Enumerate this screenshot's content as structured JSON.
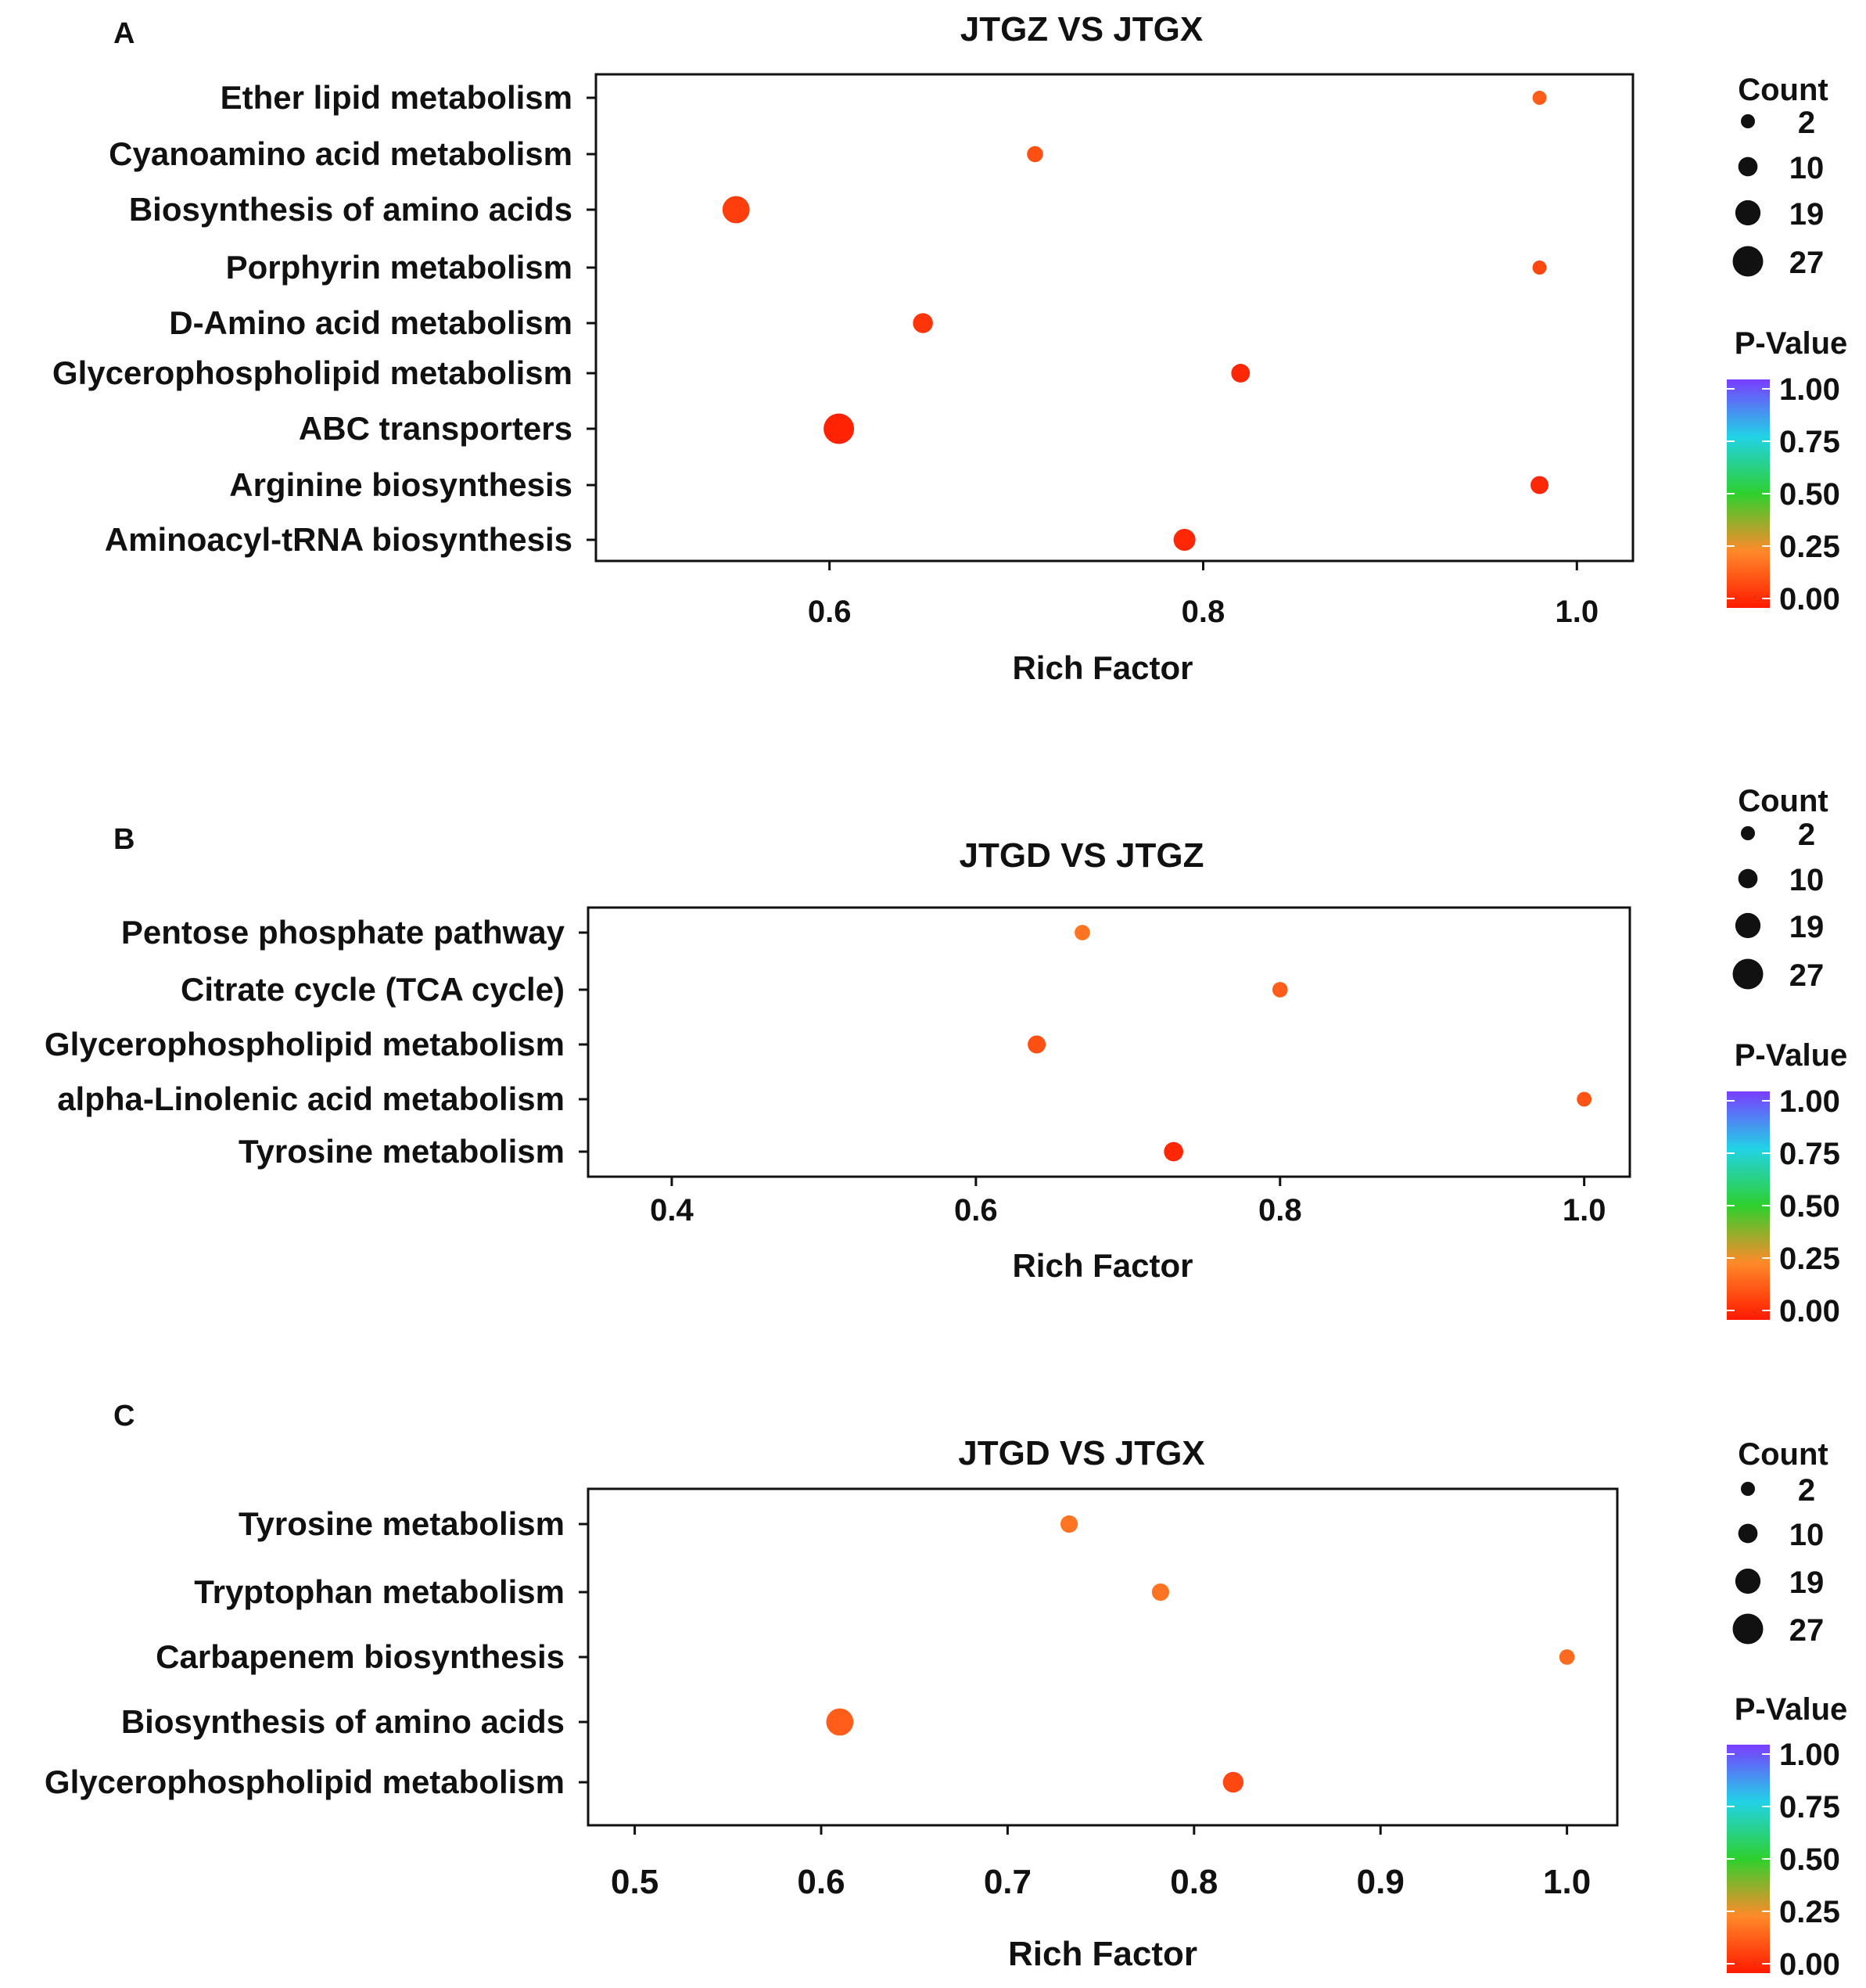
{
  "chart_data": [
    {
      "panel_label": "A",
      "type": "scatter",
      "title": "JTGZ VS JTGX",
      "xlabel": "Rich Factor",
      "ylabel": "",
      "x_ticks": [
        0.6,
        0.8,
        1.0
      ],
      "x_tick_labels": [
        "0.6",
        "0.8",
        "1.0"
      ],
      "xlim": [
        0.475,
        1.03
      ],
      "categories": [
        "Ether lipid metabolism",
        "Cyanoamino acid metabolism",
        "Biosynthesis of amino acids",
        "Porphyrin metabolism",
        "D-Amino acid metabolism",
        "Glycerophospholipid metabolism",
        "ABC transporters",
        "Arginine biosynthesis",
        "Aminoacyl-tRNA biosynthesis"
      ],
      "points": [
        {
          "pathway": "Ether lipid metabolism",
          "rich_factor": 0.98,
          "count": 2,
          "p_value": 0.15
        },
        {
          "pathway": "Cyanoamino acid metabolism",
          "rich_factor": 0.71,
          "count": 5,
          "p_value": 0.12
        },
        {
          "pathway": "Biosynthesis of amino acids",
          "rich_factor": 0.55,
          "count": 22,
          "p_value": 0.08
        },
        {
          "pathway": "Porphyrin metabolism",
          "rich_factor": 0.98,
          "count": 2,
          "p_value": 0.1
        },
        {
          "pathway": "D-Amino acid metabolism",
          "rich_factor": 0.65,
          "count": 11,
          "p_value": 0.06
        },
        {
          "pathway": "Glycerophospholipid metabolism",
          "rich_factor": 0.82,
          "count": 9,
          "p_value": 0.03
        },
        {
          "pathway": "ABC transporters",
          "rich_factor": 0.605,
          "count": 27,
          "p_value": 0.02
        },
        {
          "pathway": "Arginine biosynthesis",
          "rich_factor": 0.98,
          "count": 8,
          "p_value": 0.03
        },
        {
          "pathway": "Aminoacyl-tRNA biosynthesis",
          "rich_factor": 0.79,
          "count": 14,
          "p_value": 0.03
        }
      ],
      "size_legend": {
        "title": "Count",
        "values": [
          2,
          10,
          19,
          27
        ]
      },
      "color_legend": {
        "title": "P-Value",
        "ticks": [
          "1.00",
          "0.75",
          "0.50",
          "0.25",
          "0.00"
        ]
      }
    },
    {
      "panel_label": "B",
      "type": "scatter",
      "title": "JTGD VS JTGZ",
      "xlabel": "Rich Factor",
      "ylabel": "",
      "x_ticks": [
        0.4,
        0.6,
        0.8,
        1.0
      ],
      "x_tick_labels": [
        "0.4",
        "0.6",
        "0.8",
        "1.0"
      ],
      "xlim": [
        0.345,
        1.03
      ],
      "categories": [
        "Pentose phosphate pathway",
        "Citrate cycle (TCA cycle)",
        "Glycerophospholipid metabolism",
        "alpha-Linolenic acid metabolism",
        "Tyrosine metabolism"
      ],
      "points": [
        {
          "pathway": "Pentose phosphate pathway",
          "rich_factor": 0.67,
          "count": 4,
          "p_value": 0.2
        },
        {
          "pathway": "Citrate cycle (TCA cycle)",
          "rich_factor": 0.8,
          "count": 4,
          "p_value": 0.15
        },
        {
          "pathway": "Glycerophospholipid metabolism",
          "rich_factor": 0.64,
          "count": 8,
          "p_value": 0.12
        },
        {
          "pathway": "alpha-Linolenic acid metabolism",
          "rich_factor": 1.0,
          "count": 3,
          "p_value": 0.13
        },
        {
          "pathway": "Tyrosine metabolism",
          "rich_factor": 0.73,
          "count": 10,
          "p_value": 0.03
        }
      ],
      "size_legend": {
        "title": "Count",
        "values": [
          2,
          10,
          19,
          27
        ]
      },
      "color_legend": {
        "title": "P-Value",
        "ticks": [
          "1.00",
          "0.75",
          "0.50",
          "0.25",
          "0.00"
        ]
      }
    },
    {
      "panel_label": "C",
      "type": "scatter",
      "title": "JTGD VS JTGX",
      "xlabel": "Rich Factor",
      "ylabel": "",
      "x_ticks": [
        0.5,
        0.6,
        0.7,
        0.8,
        0.9,
        1.0
      ],
      "x_tick_labels": [
        "0.5",
        "0.6",
        "0.7",
        "0.8",
        "0.9",
        "1.0"
      ],
      "xlim": [
        0.475,
        1.027
      ],
      "categories": [
        "Tyrosine metabolism",
        "Tryptophan metabolism",
        "Carbapenem biosynthesis",
        "Biosynthesis of amino acids",
        "Glycerophospholipid metabolism"
      ],
      "points": [
        {
          "pathway": "Tyrosine metabolism",
          "rich_factor": 0.733,
          "count": 7,
          "p_value": 0.2
        },
        {
          "pathway": "Tryptophan metabolism",
          "rich_factor": 0.782,
          "count": 7,
          "p_value": 0.2
        },
        {
          "pathway": "Carbapenem biosynthesis",
          "rich_factor": 1.0,
          "count": 4,
          "p_value": 0.18
        },
        {
          "pathway": "Biosynthesis of amino acids",
          "rich_factor": 0.61,
          "count": 22,
          "p_value": 0.15
        },
        {
          "pathway": "Glycerophospholipid metabolism",
          "rich_factor": 0.821,
          "count": 12,
          "p_value": 0.1
        }
      ],
      "size_legend": {
        "title": "Count",
        "values": [
          2,
          10,
          19,
          27
        ]
      },
      "color_legend": {
        "title": "P-Value",
        "ticks": [
          "1.00",
          "0.75",
          "0.50",
          "0.25",
          "0.00"
        ]
      }
    }
  ]
}
